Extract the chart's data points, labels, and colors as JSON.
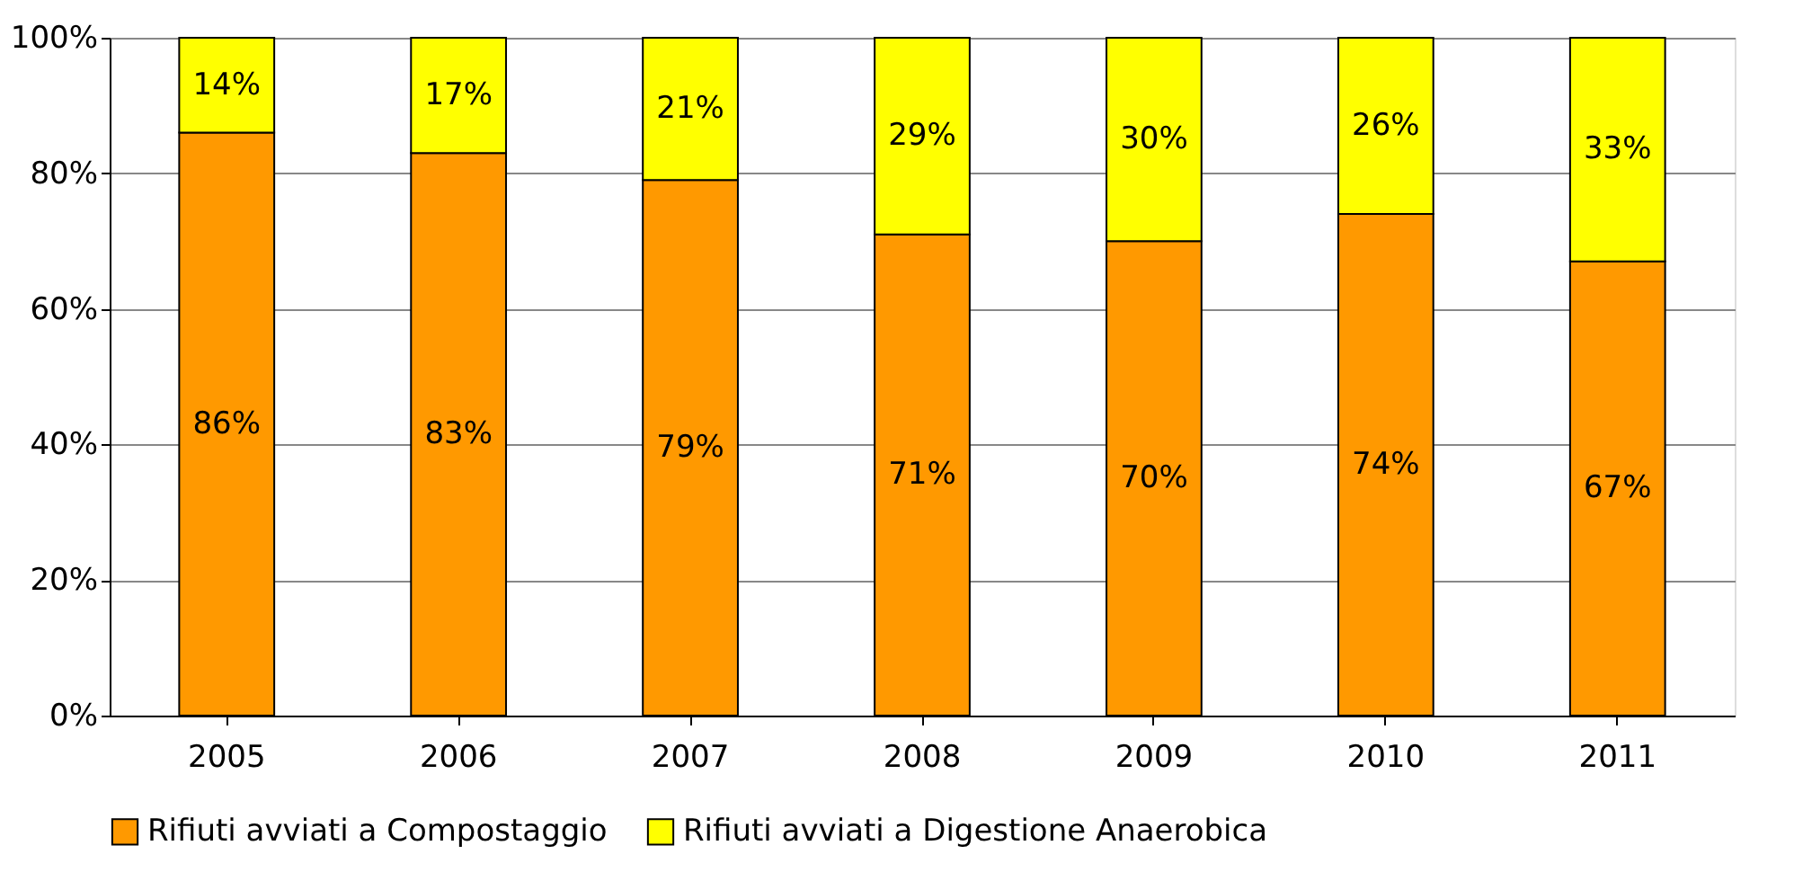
{
  "chart_data": {
    "type": "bar",
    "stacked": true,
    "categories": [
      "2005",
      "2006",
      "2007",
      "2008",
      "2009",
      "2010",
      "2011"
    ],
    "series": [
      {
        "name": "Rifiuti avviati a Compostaggio",
        "color": "#ff9900",
        "values": [
          86,
          83,
          79,
          71,
          70,
          74,
          67
        ],
        "value_labels": [
          "86%",
          "83%",
          "79%",
          "71%",
          "70%",
          "74%",
          "67%"
        ]
      },
      {
        "name": "Rifiuti avviati a Digestione Anaerobica",
        "color": "#ffff00",
        "values": [
          14,
          17,
          21,
          29,
          30,
          26,
          33
        ],
        "value_labels": [
          "14%",
          "17%",
          "21%",
          "29%",
          "30%",
          "26%",
          "33%"
        ]
      }
    ],
    "ylim": [
      0,
      100
    ],
    "yticks": [
      {
        "value": 0,
        "label": "0%"
      },
      {
        "value": 20,
        "label": "20%"
      },
      {
        "value": 40,
        "label": "40%"
      },
      {
        "value": 60,
        "label": "60%"
      },
      {
        "value": 80,
        "label": "80%"
      },
      {
        "value": 100,
        "label": "100%"
      }
    ],
    "grid": "y",
    "legend": "bottom"
  }
}
